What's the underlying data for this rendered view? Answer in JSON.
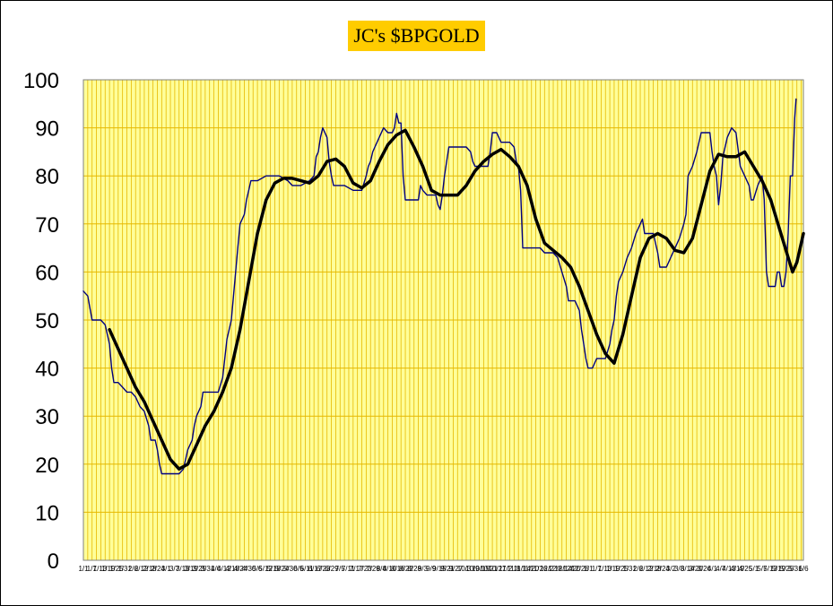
{
  "chart_data": {
    "type": "line",
    "title": "JC's $BPGOLD",
    "xlabel": "",
    "ylabel": "",
    "ylim": [
      0,
      100
    ],
    "yticks": [
      0,
      10,
      20,
      30,
      40,
      50,
      60,
      70,
      80,
      90,
      100
    ],
    "xtick_labels": [
      "1/1",
      "1/7",
      "1/13",
      "1/19",
      "1/25",
      "1/31",
      "2/6",
      "2/12",
      "2/18",
      "2/24",
      "3/1",
      "3/7",
      "3/13",
      "3/19",
      "3/25",
      "3/31",
      "4/6",
      "4/12",
      "4/18",
      "4/24",
      "4/30",
      "5/6",
      "5/12",
      "5/18",
      "5/24",
      "5/30",
      "6/5",
      "6/11",
      "6/17",
      "6/23",
      "6/29",
      "7/5",
      "7/11",
      "7/17",
      "7/23",
      "7/29",
      "8/4",
      "8/10",
      "8/16",
      "8/22",
      "8/28",
      "9/3",
      "9/9",
      "9/15",
      "9/21",
      "9/27",
      "10/3",
      "10/9",
      "10/15",
      "10/21",
      "10/27",
      "11/2",
      "11/8",
      "11/14",
      "11/20",
      "11/26",
      "12/2",
      "12/8",
      "12/14",
      "12/20",
      "12/26",
      "1/1",
      "1/7",
      "1/13",
      "1/19",
      "1/25",
      "1/31",
      "2/6",
      "2/12",
      "2/18",
      "2/24",
      "3/2",
      "3/8",
      "3/14",
      "3/20",
      "3/26",
      "4/1",
      "4/7",
      "4/13",
      "4/19",
      "4/25",
      "5/1",
      "5/7",
      "5/13",
      "5/19",
      "5/25",
      "5/31",
      "6/6"
    ],
    "grid": true,
    "colors": {
      "plot_background": "#ffff99",
      "gridline": "#e6b800",
      "title_background": "#ffcc00",
      "series_raw": "#000080",
      "series_smooth": "#000000"
    },
    "series": [
      {
        "style": "thin",
        "points": [
          [
            0,
            56
          ],
          [
            1,
            55
          ],
          [
            2,
            50
          ],
          [
            4,
            50
          ],
          [
            5,
            49
          ],
          [
            6,
            45
          ],
          [
            6.5,
            40
          ],
          [
            7,
            37
          ],
          [
            8,
            37
          ],
          [
            9,
            36
          ],
          [
            10,
            35
          ],
          [
            11,
            35
          ],
          [
            12,
            34
          ],
          [
            13,
            32
          ],
          [
            14,
            31
          ],
          [
            15,
            28
          ],
          [
            15.5,
            25
          ],
          [
            16.5,
            25
          ],
          [
            17,
            23
          ],
          [
            17.5,
            20
          ],
          [
            18,
            18
          ],
          [
            20,
            18
          ],
          [
            22,
            18
          ],
          [
            23,
            19
          ],
          [
            23.5,
            21
          ],
          [
            24,
            23
          ],
          [
            25,
            25
          ],
          [
            25.5,
            28
          ],
          [
            26,
            30
          ],
          [
            27,
            32
          ],
          [
            27.5,
            35
          ],
          [
            29,
            35
          ],
          [
            31,
            35
          ],
          [
            32,
            38
          ],
          [
            33,
            46
          ],
          [
            34,
            50
          ],
          [
            34.5,
            55
          ],
          [
            35,
            60
          ],
          [
            35.5,
            65
          ],
          [
            36,
            70
          ],
          [
            37,
            72
          ],
          [
            37.5,
            75
          ],
          [
            38,
            77
          ],
          [
            38.5,
            79
          ],
          [
            40,
            79
          ],
          [
            42,
            80
          ],
          [
            45,
            80
          ],
          [
            47,
            79
          ],
          [
            48,
            78
          ],
          [
            50,
            78
          ],
          [
            52,
            79
          ],
          [
            53,
            80
          ],
          [
            53.5,
            84
          ],
          [
            54,
            85
          ],
          [
            54.5,
            88
          ],
          [
            55,
            90
          ],
          [
            56,
            88
          ],
          [
            56.5,
            83
          ],
          [
            57,
            80
          ],
          [
            57.5,
            78
          ],
          [
            60,
            78
          ],
          [
            62,
            77
          ],
          [
            64,
            77
          ],
          [
            65,
            80
          ],
          [
            65.5,
            82
          ],
          [
            66,
            83
          ],
          [
            66.5,
            85
          ],
          [
            67,
            86
          ],
          [
            68,
            88
          ],
          [
            69,
            90
          ],
          [
            70,
            89
          ],
          [
            71,
            89
          ],
          [
            71.5,
            90
          ],
          [
            72,
            93
          ],
          [
            72.5,
            91
          ],
          [
            73,
            91
          ],
          [
            73.5,
            80
          ],
          [
            74,
            75
          ],
          [
            77,
            75
          ],
          [
            77.5,
            78
          ],
          [
            78,
            77
          ],
          [
            79,
            76
          ],
          [
            80,
            76
          ],
          [
            81,
            76
          ],
          [
            81.5,
            74
          ],
          [
            82,
            73
          ],
          [
            82.5,
            76
          ],
          [
            83,
            80
          ],
          [
            84,
            86
          ],
          [
            86,
            86
          ],
          [
            88,
            86
          ],
          [
            89,
            85
          ],
          [
            89.5,
            83
          ],
          [
            90,
            82
          ],
          [
            93,
            82
          ],
          [
            93.5,
            85
          ],
          [
            94,
            89
          ],
          [
            95,
            89
          ],
          [
            96,
            87
          ],
          [
            98,
            87
          ],
          [
            99,
            86
          ],
          [
            99.5,
            83
          ],
          [
            100,
            82
          ],
          [
            100.5,
            77
          ],
          [
            101,
            65
          ],
          [
            104,
            65
          ],
          [
            105,
            65
          ],
          [
            106,
            64
          ],
          [
            108,
            64
          ],
          [
            109,
            63
          ],
          [
            110,
            60
          ],
          [
            111,
            57
          ],
          [
            111.5,
            54
          ],
          [
            113,
            54
          ],
          [
            114,
            52
          ],
          [
            114.5,
            48
          ],
          [
            115,
            45
          ],
          [
            115.5,
            42
          ],
          [
            116,
            40
          ],
          [
            117,
            40
          ],
          [
            118,
            42
          ],
          [
            120,
            42
          ],
          [
            121,
            45
          ],
          [
            121.5,
            48
          ],
          [
            122,
            50
          ],
          [
            122.5,
            55
          ],
          [
            123,
            58
          ],
          [
            124,
            60
          ],
          [
            125,
            63
          ],
          [
            126,
            65
          ],
          [
            127,
            68
          ],
          [
            128,
            70
          ],
          [
            128.5,
            71
          ],
          [
            129,
            68
          ],
          [
            130,
            68
          ],
          [
            131,
            68
          ],
          [
            132,
            64
          ],
          [
            132.5,
            61
          ],
          [
            134,
            61
          ],
          [
            135,
            63
          ],
          [
            136,
            65
          ],
          [
            137,
            67
          ],
          [
            138,
            70
          ],
          [
            138.5,
            72
          ],
          [
            139,
            80
          ],
          [
            140,
            82
          ],
          [
            141,
            85
          ],
          [
            142,
            89
          ],
          [
            144,
            89
          ],
          [
            144.5,
            85
          ],
          [
            145,
            82
          ],
          [
            145.5,
            80
          ],
          [
            146,
            74
          ],
          [
            146.5,
            78
          ],
          [
            147,
            84
          ],
          [
            148,
            88
          ],
          [
            149,
            90
          ],
          [
            150,
            89
          ],
          [
            151,
            82
          ],
          [
            152,
            80
          ],
          [
            153,
            78
          ],
          [
            153.5,
            75
          ],
          [
            154,
            75
          ],
          [
            155,
            78
          ],
          [
            156,
            80
          ],
          [
            156.5,
            75
          ],
          [
            157,
            60
          ],
          [
            157.5,
            57
          ],
          [
            159,
            57
          ],
          [
            159.5,
            60
          ],
          [
            160,
            60
          ],
          [
            160.5,
            57
          ],
          [
            161,
            57
          ],
          [
            161.5,
            60
          ],
          [
            162,
            68
          ],
          [
            162.5,
            80
          ],
          [
            163,
            80
          ],
          [
            163.5,
            92
          ],
          [
            163.8,
            96
          ]
        ]
      },
      {
        "style": "thick",
        "points": [
          [
            6,
            48
          ],
          [
            8,
            44
          ],
          [
            10,
            40
          ],
          [
            12,
            36
          ],
          [
            14,
            33
          ],
          [
            16,
            29
          ],
          [
            18,
            25
          ],
          [
            20,
            21
          ],
          [
            22,
            19
          ],
          [
            24,
            20
          ],
          [
            26,
            24
          ],
          [
            28,
            28
          ],
          [
            30,
            31
          ],
          [
            32,
            35
          ],
          [
            34,
            40
          ],
          [
            36,
            48
          ],
          [
            38,
            58
          ],
          [
            40,
            68
          ],
          [
            42,
            75
          ],
          [
            44,
            78.5
          ],
          [
            46,
            79.5
          ],
          [
            48,
            79.5
          ],
          [
            50,
            79
          ],
          [
            52,
            78.5
          ],
          [
            54,
            80
          ],
          [
            56,
            83
          ],
          [
            58,
            83.5
          ],
          [
            60,
            82
          ],
          [
            62,
            78.5
          ],
          [
            64,
            77.5
          ],
          [
            66,
            79
          ],
          [
            68,
            83
          ],
          [
            70,
            86.5
          ],
          [
            72,
            88.5
          ],
          [
            74,
            89.5
          ],
          [
            76,
            86
          ],
          [
            78,
            82
          ],
          [
            80,
            77
          ],
          [
            82,
            76
          ],
          [
            84,
            76
          ],
          [
            86,
            76
          ],
          [
            88,
            78
          ],
          [
            90,
            81
          ],
          [
            92,
            83
          ],
          [
            94,
            84.5
          ],
          [
            96,
            85.5
          ],
          [
            98,
            84
          ],
          [
            100,
            82
          ],
          [
            102,
            78
          ],
          [
            104,
            71
          ],
          [
            106,
            66
          ],
          [
            108,
            64.5
          ],
          [
            110,
            63
          ],
          [
            112,
            61
          ],
          [
            114,
            57
          ],
          [
            116,
            52
          ],
          [
            118,
            47
          ],
          [
            120,
            43
          ],
          [
            122,
            41
          ],
          [
            124,
            47
          ],
          [
            126,
            55
          ],
          [
            128,
            63
          ],
          [
            130,
            67
          ],
          [
            132,
            68
          ],
          [
            134,
            67
          ],
          [
            136,
            64.5
          ],
          [
            138,
            64
          ],
          [
            140,
            67
          ],
          [
            142,
            74
          ],
          [
            144,
            81
          ],
          [
            146,
            84.5
          ],
          [
            148,
            84
          ],
          [
            150,
            84
          ],
          [
            152,
            85
          ],
          [
            154,
            82
          ],
          [
            156,
            79
          ],
          [
            158,
            75
          ],
          [
            160,
            69
          ],
          [
            162,
            63
          ],
          [
            163,
            60
          ],
          [
            164,
            62
          ],
          [
            165,
            66
          ],
          [
            165.5,
            68
          ]
        ]
      }
    ]
  }
}
